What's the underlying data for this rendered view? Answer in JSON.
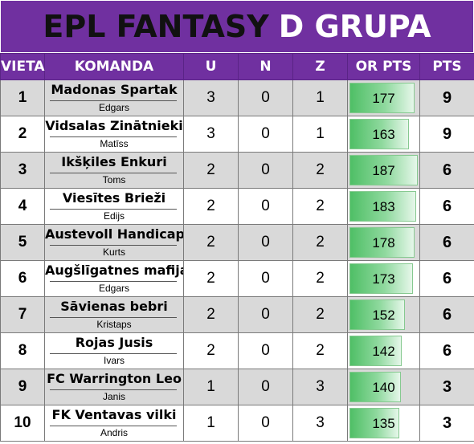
{
  "title": {
    "main": "EPL FANTASY",
    "accent": "D GRUPA"
  },
  "columns": [
    "VIETA",
    "KOMANDA",
    "U",
    "N",
    "Z",
    "OR PTS",
    "PTS"
  ],
  "or_pts_scale_max": 187,
  "rows": [
    {
      "vieta": "1",
      "team": "Madonas Spartak",
      "manager": "Edgars",
      "u": "3",
      "n": "0",
      "z": "1",
      "or_pts": 177,
      "pts": "9"
    },
    {
      "vieta": "2",
      "team": "Vidsalas Zinātnieki",
      "manager": "Matīss",
      "u": "3",
      "n": "0",
      "z": "1",
      "or_pts": 163,
      "pts": "9"
    },
    {
      "vieta": "3",
      "team": "Ikšķiles Enkuri",
      "manager": "Toms",
      "u": "2",
      "n": "0",
      "z": "2",
      "or_pts": 187,
      "pts": "6"
    },
    {
      "vieta": "4",
      "team": "Viesītes Brieži",
      "manager": "Edijs",
      "u": "2",
      "n": "0",
      "z": "2",
      "or_pts": 183,
      "pts": "6"
    },
    {
      "vieta": "5",
      "team": "Austevoll Handicaper",
      "manager": "Kurts",
      "u": "2",
      "n": "0",
      "z": "2",
      "or_pts": 178,
      "pts": "6"
    },
    {
      "vieta": "6",
      "team": "Augšlīgatnes mafija",
      "manager": "Edgars",
      "u": "2",
      "n": "0",
      "z": "2",
      "or_pts": 173,
      "pts": "6"
    },
    {
      "vieta": "7",
      "team": "Sāvienas bebri",
      "manager": "Kristaps",
      "u": "2",
      "n": "0",
      "z": "2",
      "or_pts": 152,
      "pts": "6"
    },
    {
      "vieta": "8",
      "team": "Rojas Jusis",
      "manager": "Ivars",
      "u": "2",
      "n": "0",
      "z": "2",
      "or_pts": 142,
      "pts": "6"
    },
    {
      "vieta": "9",
      "team": "FC Warrington Leo",
      "manager": "Janis",
      "u": "1",
      "n": "0",
      "z": "3",
      "or_pts": 140,
      "pts": "3"
    },
    {
      "vieta": "10",
      "team": "FK Ventavas vilki",
      "manager": "Andris",
      "u": "1",
      "n": "0",
      "z": "3",
      "or_pts": 135,
      "pts": "3"
    }
  ],
  "colors": {
    "header_bg": "#7030a0",
    "row_alt": "#d9d9d9",
    "bar_green": "#4fbf66"
  }
}
